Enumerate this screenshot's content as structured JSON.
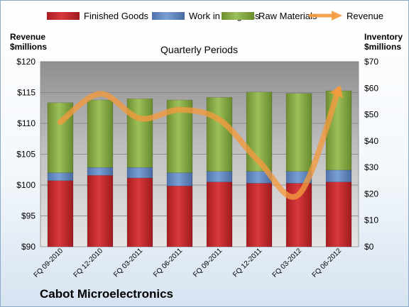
{
  "company": "Cabot Microelectronics",
  "chart_data": {
    "type": "bar",
    "stacked": true,
    "title": "Quarterly Periods",
    "categories": [
      "FQ 09-2010",
      "FQ 12-2010",
      "FQ 03-2011",
      "FQ 06-2011",
      "FQ 09-2011",
      "FQ 12-2011",
      "FQ 03-2012",
      "FQ 06-2012"
    ],
    "left_axis": {
      "label_line1": "Revenue",
      "label_line2": "$millions",
      "range": [
        90,
        120
      ],
      "step": 5,
      "tick_labels": [
        "$90",
        "$95",
        "$100",
        "$105",
        "$110",
        "$115",
        "$120"
      ]
    },
    "right_axis": {
      "label_line1": "Inventory",
      "label_line2": "$millions",
      "range": [
        0,
        70
      ],
      "step": 10,
      "tick_labels": [
        "$0",
        "$10",
        "$20",
        "$30",
        "$40",
        "$50",
        "$60",
        "$70"
      ]
    },
    "series": [
      {
        "name": "Finished Goods",
        "axis": "right",
        "color": "#c0272d",
        "values": [
          25,
          27,
          26,
          23,
          24.5,
          24,
          24,
          24.5
        ]
      },
      {
        "name": "Work in Progress",
        "axis": "right",
        "color": "#5f86c0",
        "values": [
          3,
          3,
          4,
          5,
          4,
          4.5,
          4.5,
          4.5
        ]
      },
      {
        "name": "Raw Materials",
        "axis": "right",
        "color": "#8fb04a",
        "values": [
          26.5,
          25.5,
          26,
          27.5,
          28,
          30,
          29.5,
          30
        ]
      },
      {
        "name": "Revenue",
        "axis": "left",
        "type": "line",
        "color": "#f39a3e",
        "values": [
          110.2,
          114.8,
          110.8,
          112.2,
          110.6,
          103.8,
          98.5,
          115.5
        ]
      }
    ],
    "grid": true,
    "legend": "top"
  }
}
